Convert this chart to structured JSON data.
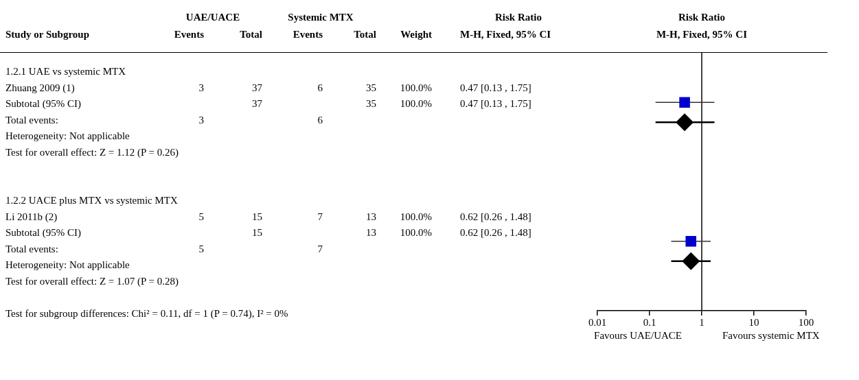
{
  "chart_data": [
    {
      "type": "other",
      "annotations": [
        "UAE/UACE",
        "Systemic MTX",
        "Risk Ratio"
      ],
      "categories": [
        "Study or Subgroup",
        "Events",
        "Total",
        "Events",
        "Total",
        "Weight",
        "M-H, Fixed, 95% CI"
      ],
      "cell_labels": [
        [
          "1.2.1 UAE vs systemic MTX",
          null,
          null,
          null,
          null,
          null,
          null
        ],
        [
          "Zhuang 2009 (1)",
          "3",
          "37",
          "6",
          "35",
          "100.0%",
          "0.47 [0.13 , 1.75]"
        ],
        [
          "Subtotal (95% CI)",
          null,
          "37",
          null,
          "35",
          "100.0%",
          "0.47 [0.13 , 1.75]"
        ],
        [
          "Total events:",
          "3",
          null,
          "6",
          null,
          null,
          null
        ],
        [
          "Heterogeneity: Not applicable",
          null,
          null,
          null,
          null,
          null,
          null
        ],
        [
          "Test for overall effect: Z = 1.12 (P = 0.26)",
          null,
          null,
          null,
          null,
          null,
          null
        ],
        [
          null,
          null,
          null,
          null,
          null,
          null,
          null
        ],
        [
          null,
          null,
          null,
          null,
          null,
          null,
          null
        ],
        [
          "1.2.2 UACE plus MTX vs systemic MTX",
          null,
          null,
          null,
          null,
          null,
          null
        ],
        [
          "Li 2011b (2)",
          "5",
          "15",
          "7",
          "13",
          "100.0%",
          "0.62 [0.26 , 1.48]"
        ],
        [
          "Subtotal (95% CI)",
          null,
          "15",
          null,
          "13",
          "100.0%",
          "0.62 [0.26 , 1.48]"
        ],
        [
          "Total events:",
          "5",
          null,
          "7",
          null,
          null,
          null
        ],
        [
          "Heterogeneity: Not applicable",
          null,
          null,
          null,
          null,
          null,
          null
        ],
        [
          "Test for overall effect: Z = 1.07 (P = 0.28)",
          null,
          null,
          null,
          null,
          null,
          null
        ],
        [
          null,
          null,
          null,
          null,
          null,
          null,
          null
        ],
        [
          "Test for subgroup differences: Chi² = 0.11, df = 1 (P = 0.74), I² = 0%",
          null,
          null,
          null,
          null,
          null,
          null
        ]
      ]
    },
    {
      "type": "scatter",
      "title": "Risk Ratio",
      "subtitle": "M-H, Fixed, 95% CI",
      "orientation": "horizontal",
      "categories": [
        null,
        null,
        null,
        null,
        null,
        null,
        null,
        null,
        null,
        null,
        null,
        null,
        null
      ],
      "log": "x",
      "xlim": [
        0.01,
        100
      ],
      "xticks": [
        0.01,
        0.1,
        1,
        10,
        100
      ],
      "grid": false,
      "legend": false,
      "series": [
        {
          "type": "scatter",
          "marker": "square",
          "color": "#0000cc",
          "values": [
            null,
            null,
            0.47,
            null,
            null,
            null,
            null,
            null,
            null,
            0.62,
            null,
            null,
            null
          ],
          "errors": [
            null,
            null,
            [
              0.13,
              1.75
            ],
            null,
            null,
            null,
            null,
            null,
            null,
            [
              0.26,
              1.48
            ],
            null,
            null,
            null
          ]
        },
        {
          "type": "scatter",
          "marker": "diamond",
          "color": "#000000",
          "values": [
            null,
            null,
            null,
            0.47,
            null,
            null,
            null,
            null,
            null,
            null,
            0.62,
            null,
            null
          ],
          "errors": [
            null,
            null,
            null,
            [
              0.13,
              1.75
            ],
            null,
            null,
            null,
            null,
            null,
            null,
            [
              0.26,
              1.48
            ],
            null,
            null
          ]
        }
      ],
      "ref_lines": [
        {
          "axis": "x",
          "value": 1,
          "color": "#000000"
        }
      ],
      "annotations": [
        "Favours UAE/UACE",
        "Favours systemic MTX"
      ]
    }
  ]
}
